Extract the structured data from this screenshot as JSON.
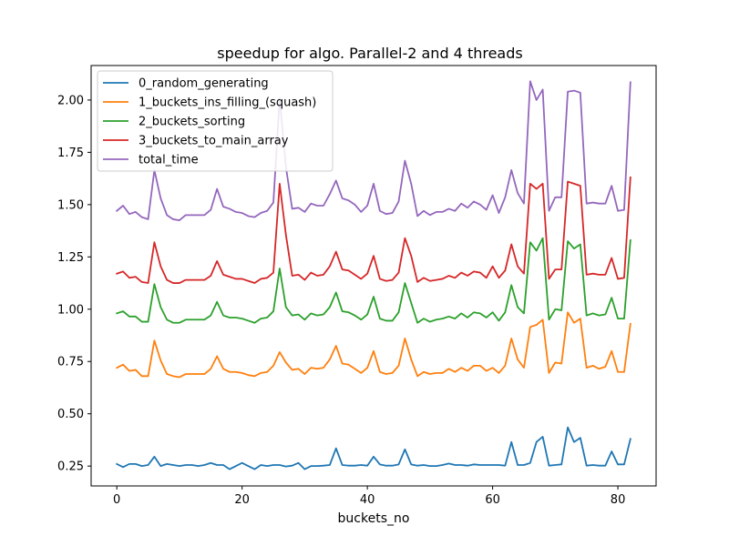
{
  "chart_data": {
    "type": "line",
    "title": "speedup for algo. Parallel-2 and 4 threads",
    "xlabel": "buckets_no",
    "ylabel": "",
    "xlim": [
      -4.1,
      86.1
    ],
    "ylim": [
      0.155,
      2.165
    ],
    "xticks": [
      0,
      20,
      40,
      60,
      80
    ],
    "yticks": [
      0.25,
      0.5,
      0.75,
      1.0,
      1.25,
      1.5,
      1.75,
      2.0
    ],
    "ytick_labels": [
      "0.25",
      "0.50",
      "0.75",
      "1.00",
      "1.25",
      "1.50",
      "1.75",
      "2.00"
    ],
    "legend_position": "upper-left",
    "x": [
      0,
      1,
      2,
      3,
      4,
      5,
      6,
      7,
      8,
      9,
      10,
      11,
      12,
      13,
      14,
      15,
      16,
      17,
      18,
      19,
      20,
      21,
      22,
      23,
      24,
      25,
      26,
      27,
      28,
      29,
      30,
      31,
      32,
      33,
      34,
      35,
      36,
      37,
      38,
      39,
      40,
      41,
      42,
      43,
      44,
      45,
      46,
      47,
      48,
      49,
      50,
      51,
      52,
      53,
      54,
      55,
      56,
      57,
      58,
      59,
      60,
      61,
      62,
      63,
      64,
      65,
      66,
      67,
      68,
      69,
      70,
      71,
      72,
      73,
      74,
      75,
      76,
      77,
      78,
      79,
      80,
      81,
      82
    ],
    "series": [
      {
        "name": "0_random_generating",
        "color": "#1f77b4",
        "values": [
          0.26,
          0.245,
          0.26,
          0.26,
          0.25,
          0.255,
          0.295,
          0.25,
          0.26,
          0.255,
          0.25,
          0.255,
          0.255,
          0.25,
          0.255,
          0.265,
          0.255,
          0.255,
          0.235,
          0.25,
          0.265,
          0.25,
          0.235,
          0.255,
          0.25,
          0.255,
          0.255,
          0.248,
          0.252,
          0.265,
          0.235,
          0.25,
          0.25,
          0.252,
          0.255,
          0.335,
          0.255,
          0.252,
          0.252,
          0.255,
          0.252,
          0.295,
          0.258,
          0.252,
          0.252,
          0.258,
          0.33,
          0.258,
          0.252,
          0.255,
          0.25,
          0.25,
          0.255,
          0.262,
          0.255,
          0.255,
          0.252,
          0.258,
          0.255,
          0.255,
          0.255,
          0.255,
          0.252,
          0.365,
          0.255,
          0.255,
          0.265,
          0.365,
          0.39,
          0.252,
          0.255,
          0.258,
          0.435,
          0.365,
          0.385,
          0.252,
          0.255,
          0.252,
          0.252,
          0.32,
          0.258,
          0.258,
          0.38
        ]
      },
      {
        "name": "1_buckets_ins_filling_(squash)",
        "color": "#ff7f0e",
        "values": [
          0.72,
          0.735,
          0.705,
          0.71,
          0.68,
          0.68,
          0.85,
          0.755,
          0.69,
          0.68,
          0.675,
          0.69,
          0.69,
          0.69,
          0.69,
          0.715,
          0.775,
          0.715,
          0.7,
          0.7,
          0.695,
          0.685,
          0.68,
          0.695,
          0.7,
          0.73,
          0.795,
          0.745,
          0.71,
          0.715,
          0.69,
          0.72,
          0.715,
          0.72,
          0.76,
          0.825,
          0.74,
          0.735,
          0.715,
          0.695,
          0.72,
          0.8,
          0.7,
          0.69,
          0.695,
          0.73,
          0.86,
          0.76,
          0.68,
          0.7,
          0.69,
          0.695,
          0.695,
          0.715,
          0.7,
          0.72,
          0.705,
          0.73,
          0.73,
          0.705,
          0.72,
          0.695,
          0.73,
          0.86,
          0.76,
          0.72,
          0.915,
          0.925,
          0.95,
          0.695,
          0.745,
          0.74,
          0.985,
          0.935,
          0.955,
          0.72,
          0.73,
          0.715,
          0.725,
          0.8,
          0.7,
          0.7,
          0.93
        ]
      },
      {
        "name": "2_buckets_sorting",
        "color": "#2ca02c",
        "values": [
          0.98,
          0.99,
          0.965,
          0.965,
          0.94,
          0.94,
          1.12,
          1.01,
          0.95,
          0.935,
          0.935,
          0.95,
          0.95,
          0.95,
          0.95,
          0.97,
          1.035,
          0.97,
          0.96,
          0.96,
          0.955,
          0.945,
          0.935,
          0.955,
          0.96,
          0.99,
          1.195,
          1.01,
          0.97,
          0.975,
          0.95,
          0.98,
          0.97,
          0.975,
          1.01,
          1.08,
          0.99,
          0.985,
          0.97,
          0.95,
          0.975,
          1.06,
          0.955,
          0.945,
          0.945,
          0.985,
          1.125,
          1.03,
          0.935,
          0.955,
          0.94,
          0.95,
          0.955,
          0.965,
          0.955,
          0.98,
          0.96,
          0.985,
          0.98,
          0.96,
          0.985,
          0.945,
          0.985,
          1.115,
          1.01,
          0.98,
          1.32,
          1.28,
          1.34,
          0.95,
          1.0,
          0.995,
          1.325,
          1.29,
          1.31,
          0.97,
          0.98,
          0.97,
          0.975,
          1.055,
          0.955,
          0.955,
          1.33
        ]
      },
      {
        "name": "3_buckets_to_main_array",
        "color": "#d62728",
        "values": [
          1.17,
          1.18,
          1.15,
          1.155,
          1.13,
          1.125,
          1.32,
          1.205,
          1.14,
          1.125,
          1.125,
          1.14,
          1.14,
          1.14,
          1.14,
          1.16,
          1.23,
          1.165,
          1.155,
          1.145,
          1.145,
          1.135,
          1.125,
          1.145,
          1.15,
          1.175,
          1.6,
          1.355,
          1.16,
          1.165,
          1.14,
          1.175,
          1.16,
          1.165,
          1.205,
          1.275,
          1.19,
          1.185,
          1.165,
          1.145,
          1.17,
          1.255,
          1.145,
          1.135,
          1.14,
          1.175,
          1.34,
          1.255,
          1.13,
          1.15,
          1.135,
          1.14,
          1.145,
          1.16,
          1.15,
          1.175,
          1.16,
          1.18,
          1.175,
          1.15,
          1.205,
          1.15,
          1.185,
          1.31,
          1.205,
          1.17,
          1.6,
          1.575,
          1.6,
          1.145,
          1.19,
          1.19,
          1.61,
          1.6,
          1.59,
          1.165,
          1.17,
          1.165,
          1.165,
          1.245,
          1.145,
          1.15,
          1.63
        ]
      },
      {
        "name": "total_time",
        "color": "#9467bd",
        "values": [
          1.47,
          1.495,
          1.455,
          1.465,
          1.44,
          1.43,
          1.665,
          1.53,
          1.45,
          1.43,
          1.425,
          1.45,
          1.45,
          1.45,
          1.45,
          1.475,
          1.575,
          1.49,
          1.48,
          1.465,
          1.46,
          1.445,
          1.44,
          1.46,
          1.47,
          1.51,
          2.01,
          1.68,
          1.48,
          1.485,
          1.465,
          1.505,
          1.495,
          1.495,
          1.55,
          1.615,
          1.53,
          1.52,
          1.5,
          1.465,
          1.495,
          1.6,
          1.47,
          1.455,
          1.46,
          1.515,
          1.71,
          1.6,
          1.445,
          1.47,
          1.45,
          1.465,
          1.465,
          1.48,
          1.47,
          1.505,
          1.485,
          1.515,
          1.5,
          1.475,
          1.545,
          1.46,
          1.535,
          1.665,
          1.555,
          1.505,
          2.09,
          2.0,
          2.05,
          1.47,
          1.535,
          1.535,
          2.04,
          2.045,
          2.035,
          1.505,
          1.51,
          1.505,
          1.505,
          1.59,
          1.47,
          1.475,
          2.085
        ]
      }
    ]
  }
}
